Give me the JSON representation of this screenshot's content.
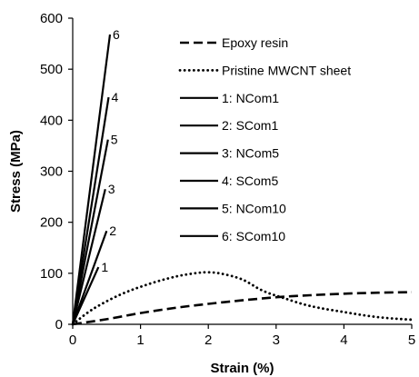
{
  "chart_data": {
    "type": "line",
    "xlabel": "Strain (%)",
    "ylabel": "Stress (MPa)",
    "xlim": [
      0,
      5
    ],
    "ylim": [
      0,
      600
    ],
    "xticks": [
      0,
      1,
      2,
      3,
      4,
      5
    ],
    "yticks": [
      0,
      100,
      200,
      300,
      400,
      500,
      600
    ],
    "grid": false,
    "legend_position": "top-right",
    "series": [
      {
        "name": "Epoxy resin",
        "style": "dashed",
        "points": [
          [
            0,
            0
          ],
          [
            0.5,
            10
          ],
          [
            1,
            22
          ],
          [
            1.5,
            32
          ],
          [
            2,
            40
          ],
          [
            2.5,
            47
          ],
          [
            3,
            53
          ],
          [
            3.5,
            57
          ],
          [
            4,
            60
          ],
          [
            4.5,
            62
          ],
          [
            5,
            63
          ]
        ]
      },
      {
        "name": "Pristine MWCNT sheet",
        "style": "dotted",
        "points": [
          [
            0,
            0
          ],
          [
            0.3,
            30
          ],
          [
            0.7,
            58
          ],
          [
            1.1,
            78
          ],
          [
            1.5,
            93
          ],
          [
            1.8,
            100
          ],
          [
            2.0,
            102
          ],
          [
            2.2,
            99
          ],
          [
            2.5,
            88
          ],
          [
            2.8,
            66
          ],
          [
            3.1,
            52
          ],
          [
            3.5,
            36
          ],
          [
            4.0,
            24
          ],
          [
            4.5,
            14
          ],
          [
            5,
            9
          ]
        ]
      },
      {
        "name": "1: NCom1",
        "label": "1",
        "style": "solid",
        "points": [
          [
            0,
            0
          ],
          [
            0.38,
            112
          ]
        ]
      },
      {
        "name": "2: SCom1",
        "label": "2",
        "style": "solid",
        "points": [
          [
            0,
            0
          ],
          [
            0.5,
            183
          ]
        ]
      },
      {
        "name": "3: NCom5",
        "label": "3",
        "style": "solid",
        "points": [
          [
            0,
            0
          ],
          [
            0.48,
            265
          ]
        ]
      },
      {
        "name": "4: SCom5",
        "label": "4",
        "style": "solid",
        "points": [
          [
            0,
            0
          ],
          [
            0.53,
            445
          ]
        ]
      },
      {
        "name": "5: NCom10",
        "label": "5",
        "style": "solid",
        "points": [
          [
            0,
            0
          ],
          [
            0.52,
            362
          ]
        ]
      },
      {
        "name": "6: SCom10",
        "label": "6",
        "style": "solid",
        "points": [
          [
            0,
            0
          ],
          [
            0.55,
            568
          ]
        ]
      }
    ]
  }
}
